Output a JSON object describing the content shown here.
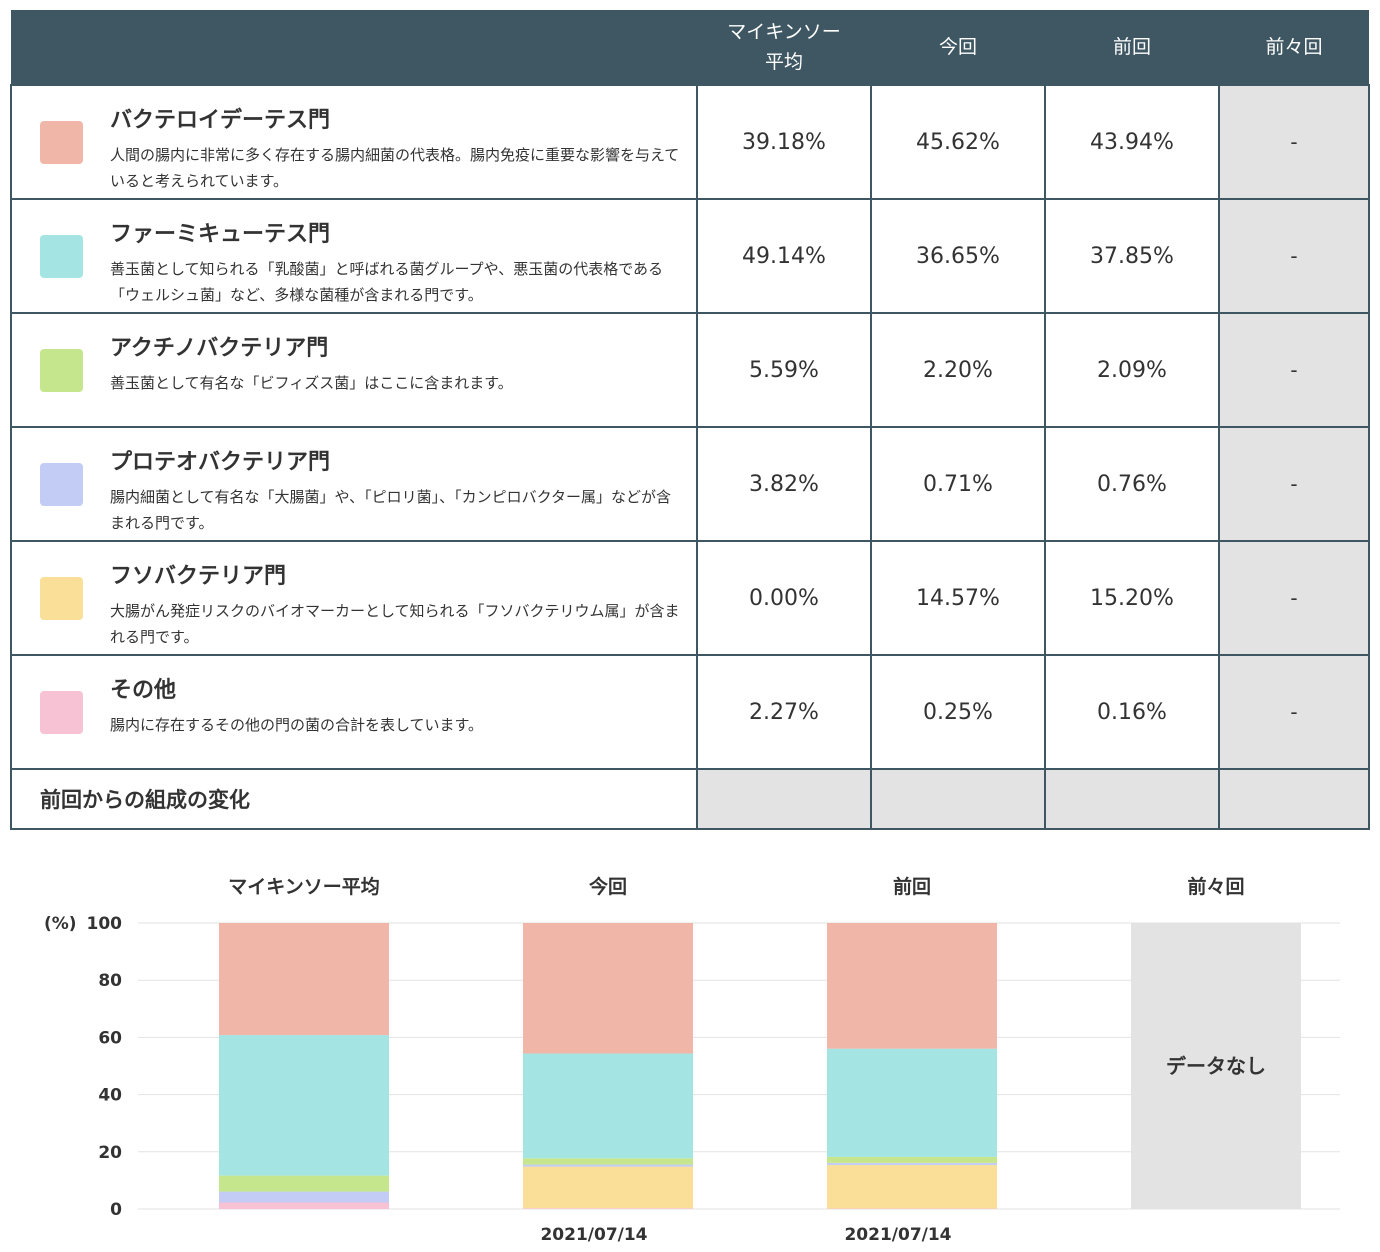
{
  "table": {
    "headers": [
      "",
      "マイキンソー\n平均",
      "今回",
      "前回",
      "前々回"
    ],
    "rows": [
      {
        "name": "バクテロイデーテス門",
        "desc": "人間の腸内に非常に多く存在する腸内細菌の代表格。腸内免疫に重要な影響を与えていると考えられています。",
        "color": "#f0b6a7",
        "avg": "39.18%",
        "current": "45.62%",
        "previous": "43.94%",
        "before_previous": "-"
      },
      {
        "name": "ファーミキューテス門",
        "desc": "善玉菌として知られる「乳酸菌」と呼ばれる菌グループや、悪玉菌の代表格である「ウェルシュ菌」など、多様な菌種が含まれる門です。",
        "color": "#a4e5e3",
        "avg": "49.14%",
        "current": "36.65%",
        "previous": "37.85%",
        "before_previous": "-"
      },
      {
        "name": "アクチノバクテリア門",
        "desc": "善玉菌として有名な「ビフィズス菌」はここに含まれます。",
        "color": "#c5e68c",
        "avg": "5.59%",
        "current": "2.20%",
        "previous": "2.09%",
        "before_previous": "-"
      },
      {
        "name": "プロテオバクテリア門",
        "desc": "腸内細菌として有名な「大腸菌」や、「ピロリ菌」、「カンピロバクター属」などが含まれる門です。",
        "color": "#c2ccf5",
        "avg": "3.82%",
        "current": "0.71%",
        "previous": "0.76%",
        "before_previous": "-"
      },
      {
        "name": "フソバクテリア門",
        "desc": "大腸がん発症リスクのバイオマーカーとして知られる「フソバクテリウム属」が含まれる門です。",
        "color": "#f9df98",
        "avg": "0.00%",
        "current": "14.57%",
        "previous": "15.20%",
        "before_previous": "-"
      },
      {
        "name": "その他",
        "desc": "腸内に存在するその他の門の菌の合計を表しています。",
        "color": "#f6c2d4",
        "avg": "2.27%",
        "current": "0.25%",
        "previous": "0.16%",
        "before_previous": "-"
      }
    ],
    "change_label": "前回からの組成の変化"
  },
  "chart_data": {
    "type": "bar",
    "stacked": true,
    "categories": [
      "マイキンソー平均",
      "今回",
      "前回",
      "前々回"
    ],
    "dates": [
      "",
      "2021/07/14",
      "2021/07/14",
      ""
    ],
    "series": [
      {
        "name": "バクテロイデーテス門",
        "color": "#f0b6a7",
        "values": [
          39.18,
          45.62,
          43.94,
          null
        ]
      },
      {
        "name": "ファーミキューテス門",
        "color": "#a4e5e3",
        "values": [
          49.14,
          36.65,
          37.85,
          null
        ]
      },
      {
        "name": "アクチノバクテリア門",
        "color": "#c5e68c",
        "values": [
          5.59,
          2.2,
          2.09,
          null
        ]
      },
      {
        "name": "プロテオバクテリア門",
        "color": "#c2ccf5",
        "values": [
          3.82,
          0.71,
          0.76,
          null
        ]
      },
      {
        "name": "フソバクテリア門",
        "color": "#f9df98",
        "values": [
          0.0,
          14.57,
          15.2,
          null
        ]
      },
      {
        "name": "その他",
        "color": "#f6c2d4",
        "values": [
          2.27,
          0.25,
          0.16,
          null
        ]
      }
    ],
    "no_data_label": "データなし",
    "ylabel": "(%)",
    "yticks": [
      0,
      20,
      40,
      60,
      80,
      100
    ],
    "ylim": [
      0,
      100
    ],
    "grid": true
  }
}
